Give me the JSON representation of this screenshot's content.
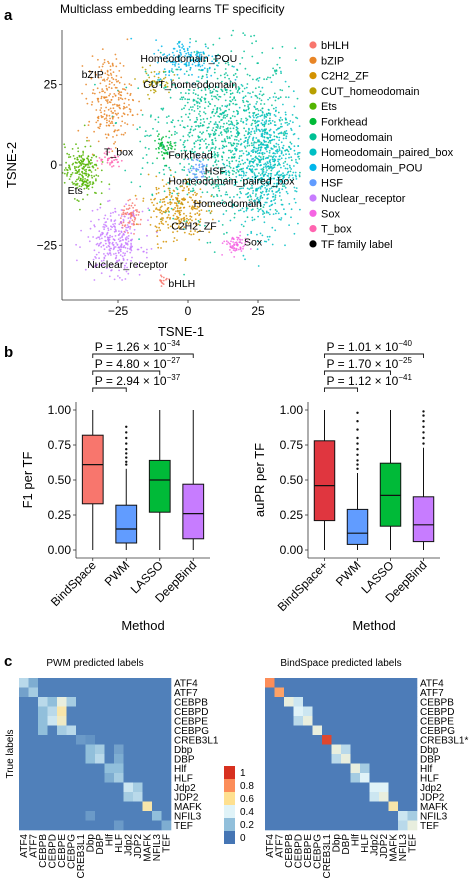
{
  "figure": {
    "title": "Multiclass embedding learns TF specificity"
  },
  "chart_data": [
    {
      "panel": "a",
      "type": "scatter",
      "xlabel": "TSNE-1",
      "ylabel": "TSNE-2",
      "xlim": [
        -45,
        40
      ],
      "ylim": [
        -42,
        42
      ],
      "xticks": [
        "−25",
        "0",
        "25"
      ],
      "yticks": [
        "25",
        "0",
        "−25"
      ],
      "xtick_values": [
        -25,
        0,
        25
      ],
      "ytick_values": [
        25,
        0,
        -25
      ],
      "legend_position": "right",
      "legend": [
        {
          "name": "bHLH",
          "color": "#f8766d"
        },
        {
          "name": "bZIP",
          "color": "#e88526"
        },
        {
          "name": "C2H2_ZF",
          "color": "#d39200"
        },
        {
          "name": "CUT_homeodomain",
          "color": "#b79f00"
        },
        {
          "name": "Ets",
          "color": "#53b400"
        },
        {
          "name": "Forkhead",
          "color": "#00ba38"
        },
        {
          "name": "Homeodomain",
          "color": "#00c094"
        },
        {
          "name": "Homeodomain_paired_box",
          "color": "#00bfc4"
        },
        {
          "name": "Homeodomain_POU",
          "color": "#00b6eb"
        },
        {
          "name": "HSF",
          "color": "#619cff"
        },
        {
          "name": "Nuclear_receptor",
          "color": "#c77cff"
        },
        {
          "name": "Sox",
          "color": "#f564e3"
        },
        {
          "name": "T_box",
          "color": "#ff64b0"
        },
        {
          "name": "TF family label",
          "color": "#000000"
        }
      ],
      "annotations": [
        {
          "text": "Homeodomain_POU",
          "x": -17,
          "y": 32
        },
        {
          "text": "bZIP",
          "x": -38,
          "y": 27
        },
        {
          "text": "CUT_homeodomain",
          "x": -16,
          "y": 24
        },
        {
          "text": "T_box",
          "x": -30,
          "y": 3
        },
        {
          "text": "Forkhead",
          "x": -7,
          "y": 2
        },
        {
          "text": "HSF",
          "x": 6,
          "y": -3
        },
        {
          "text": "Homeodomain_paired_box",
          "x": -7,
          "y": -6
        },
        {
          "text": "Ets",
          "x": -43,
          "y": -9
        },
        {
          "text": "Homeodomain",
          "x": 2,
          "y": -13
        },
        {
          "text": "C2H2_ZF",
          "x": -6,
          "y": -20
        },
        {
          "text": "Sox",
          "x": 20,
          "y": -25
        },
        {
          "text": "Nuclear_receptor",
          "x": -36,
          "y": -32
        },
        {
          "text": "bHLH",
          "x": -7,
          "y": -38
        }
      ],
      "clusters": [
        {
          "name": "Homeodomain",
          "color": "#00c094",
          "cx": 12,
          "cy": 10,
          "sx": 13,
          "sy": 13,
          "n": 1000
        },
        {
          "name": "Homeodomain_paired_box",
          "color": "#00bfc4",
          "cx": 28,
          "cy": 0,
          "sx": 6,
          "sy": 10,
          "n": 700
        },
        {
          "name": "Homeodomain_POU",
          "color": "#00b6eb",
          "cx": 0,
          "cy": 33,
          "sx": 6,
          "sy": 3,
          "n": 160
        },
        {
          "name": "CUT_homeodomain",
          "color": "#b79f00",
          "cx": -12,
          "cy": 26,
          "sx": 3,
          "sy": 2,
          "n": 50
        },
        {
          "name": "bZIP",
          "color": "#e88526",
          "cx": -28,
          "cy": 20,
          "sx": 4,
          "sy": 7,
          "n": 240
        },
        {
          "name": "Ets",
          "color": "#53b400",
          "cx": -38,
          "cy": -2,
          "sx": 3,
          "sy": 4,
          "n": 220
        },
        {
          "name": "T_box",
          "color": "#ff64b0",
          "cx": -28,
          "cy": 2,
          "sx": 2,
          "sy": 1.5,
          "n": 40
        },
        {
          "name": "Forkhead",
          "color": "#00ba38",
          "cx": -8,
          "cy": 6,
          "sx": 2,
          "sy": 2,
          "n": 60
        },
        {
          "name": "HSF",
          "color": "#619cff",
          "cx": 4,
          "cy": -1,
          "sx": 2,
          "sy": 2,
          "n": 50
        },
        {
          "name": "C2H2_ZF",
          "color": "#d39200",
          "cx": -4,
          "cy": -14,
          "sx": 5,
          "sy": 5,
          "n": 260
        },
        {
          "name": "bHLH",
          "color": "#f8766d",
          "cx": -20,
          "cy": -16,
          "sx": 2,
          "sy": 2,
          "n": 70
        },
        {
          "name": "Nuclear_receptor",
          "color": "#c77cff",
          "cx": -26,
          "cy": -24,
          "sx": 5,
          "sy": 5,
          "n": 300
        },
        {
          "name": "Sox",
          "color": "#f564e3",
          "cx": 17,
          "cy": -25,
          "sx": 2,
          "sy": 1.5,
          "n": 70
        },
        {
          "name": "bHLH",
          "color": "#f8766d",
          "cx": -9,
          "cy": -36,
          "sx": 1,
          "sy": 1,
          "n": 15
        }
      ]
    },
    {
      "panel": "b-left",
      "type": "box",
      "xlabel": "Method",
      "ylabel": "F1 per TF",
      "ylim": [
        0,
        1
      ],
      "yticks": [
        "0.00",
        "0.25",
        "0.50",
        "0.75",
        "1.00"
      ],
      "ytick_values": [
        0,
        0.25,
        0.5,
        0.75,
        1.0
      ],
      "categories": [
        "BindSpace",
        "PWM",
        "LASSO",
        "DeepBind"
      ],
      "colors": [
        "#f8766d",
        "#619cff",
        "#00ba38",
        "#c77cff"
      ],
      "boxes": [
        {
          "low": 0.0,
          "q1": 0.33,
          "median": 0.61,
          "q3": 0.82,
          "high": 1.0,
          "outliers": []
        },
        {
          "low": 0.0,
          "q1": 0.05,
          "median": 0.15,
          "q3": 0.32,
          "high": 0.58,
          "outliers": [
            0.61,
            0.63,
            0.66,
            0.69,
            0.72,
            0.76,
            0.8,
            0.84,
            0.88
          ]
        },
        {
          "low": 0.0,
          "q1": 0.27,
          "median": 0.5,
          "q3": 0.64,
          "high": 1.0,
          "outliers": []
        },
        {
          "low": 0.0,
          "q1": 0.08,
          "median": 0.26,
          "q3": 0.47,
          "high": 1.0,
          "outliers": []
        }
      ],
      "comparisons": [
        {
          "from": 0,
          "to": 1,
          "p_text": "P = 2.94 × 10",
          "exp": "−37"
        },
        {
          "from": 0,
          "to": 2,
          "p_text": "P = 4.80 × 10",
          "exp": "−27"
        },
        {
          "from": 0,
          "to": 3,
          "p_text": "P = 1.26 × 10",
          "exp": "−34"
        }
      ]
    },
    {
      "panel": "b-right",
      "type": "box",
      "xlabel": "Method",
      "ylabel": "auPR per TF",
      "ylim": [
        0,
        1
      ],
      "yticks": [
        "0.00",
        "0.25",
        "0.50",
        "0.75",
        "1.00"
      ],
      "ytick_values": [
        0,
        0.25,
        0.5,
        0.75,
        1.0
      ],
      "categories": [
        "BindSpace+",
        "PWM",
        "LASSO",
        "DeepBind"
      ],
      "colors": [
        "#e0363f",
        "#619cff",
        "#00ba38",
        "#c77cff"
      ],
      "boxes": [
        {
          "low": 0.0,
          "q1": 0.21,
          "median": 0.46,
          "q3": 0.78,
          "high": 1.0,
          "outliers": []
        },
        {
          "low": 0.0,
          "q1": 0.04,
          "median": 0.12,
          "q3": 0.29,
          "high": 0.55,
          "outliers": [
            0.58,
            0.61,
            0.64,
            0.68,
            0.72,
            0.76,
            0.8,
            0.86,
            0.92,
            0.98
          ]
        },
        {
          "low": 0.0,
          "q1": 0.17,
          "median": 0.39,
          "q3": 0.62,
          "high": 1.0,
          "outliers": []
        },
        {
          "low": 0.0,
          "q1": 0.06,
          "median": 0.18,
          "q3": 0.38,
          "high": 0.73,
          "outliers": [
            0.76,
            0.8,
            0.84,
            0.88,
            0.92,
            0.96,
            0.99
          ]
        }
      ],
      "comparisons": [
        {
          "from": 0,
          "to": 1,
          "p_text": "P = 1.12 × 10",
          "exp": "−41"
        },
        {
          "from": 0,
          "to": 2,
          "p_text": "P = 1.70 × 10",
          "exp": "−25"
        },
        {
          "from": 0,
          "to": 3,
          "p_text": "P = 1.01 × 10",
          "exp": "−40"
        }
      ]
    },
    {
      "panel": "c-left",
      "type": "heatmap",
      "title": "PWM predicted labels",
      "ylabel": "True labels",
      "labels": [
        "ATF4",
        "ATF7",
        "CEBPB",
        "CEBPD",
        "CEBPE",
        "CEBPG",
        "CREB3L1",
        "Dbp",
        "DBP",
        "Hlf",
        "HLF",
        "Jdp2",
        "JDP2",
        "MAFK",
        "NFIL3",
        "TEF"
      ],
      "row_order": "top-to-bottom",
      "strong_cells": [
        {
          "r": 0,
          "c": 0,
          "v": 0.3
        },
        {
          "r": 0,
          "c": 1,
          "v": 0.15
        },
        {
          "r": 1,
          "c": 1,
          "v": 0.25
        },
        {
          "r": 1,
          "c": 0,
          "v": 0.12
        },
        {
          "r": 2,
          "c": 2,
          "v": 0.3
        },
        {
          "r": 2,
          "c": 4,
          "v": 0.45
        },
        {
          "r": 2,
          "c": 3,
          "v": 0.2
        },
        {
          "r": 2,
          "c": 5,
          "v": 0.25
        },
        {
          "r": 3,
          "c": 3,
          "v": 0.3
        },
        {
          "r": 3,
          "c": 4,
          "v": 0.55
        },
        {
          "r": 3,
          "c": 2,
          "v": 0.2
        },
        {
          "r": 4,
          "c": 4,
          "v": 0.5
        },
        {
          "r": 4,
          "c": 3,
          "v": 0.35
        },
        {
          "r": 4,
          "c": 2,
          "v": 0.2
        },
        {
          "r": 5,
          "c": 5,
          "v": 0.3
        },
        {
          "r": 5,
          "c": 2,
          "v": 0.2
        },
        {
          "r": 5,
          "c": 4,
          "v": 0.25
        },
        {
          "r": 6,
          "c": 6,
          "v": 0.1
        },
        {
          "r": 6,
          "c": 7,
          "v": 0.08
        },
        {
          "r": 7,
          "c": 7,
          "v": 0.2
        },
        {
          "r": 7,
          "c": 8,
          "v": 0.25
        },
        {
          "r": 7,
          "c": 10,
          "v": 0.12
        },
        {
          "r": 8,
          "c": 8,
          "v": 0.3
        },
        {
          "r": 8,
          "c": 7,
          "v": 0.2
        },
        {
          "r": 8,
          "c": 10,
          "v": 0.15
        },
        {
          "r": 9,
          "c": 9,
          "v": 0.2
        },
        {
          "r": 9,
          "c": 10,
          "v": 0.2
        },
        {
          "r": 10,
          "c": 10,
          "v": 0.25
        },
        {
          "r": 10,
          "c": 9,
          "v": 0.15
        },
        {
          "r": 11,
          "c": 11,
          "v": 0.35
        },
        {
          "r": 11,
          "c": 12,
          "v": 0.25
        },
        {
          "r": 12,
          "c": 12,
          "v": 0.3
        },
        {
          "r": 12,
          "c": 11,
          "v": 0.25
        },
        {
          "r": 13,
          "c": 13,
          "v": 0.55
        },
        {
          "r": 14,
          "c": 14,
          "v": 0.2
        },
        {
          "r": 14,
          "c": 7,
          "v": 0.1
        },
        {
          "r": 15,
          "c": 15,
          "v": 0.15
        },
        {
          "r": 15,
          "c": 10,
          "v": 0.1
        }
      ],
      "baseline": 0.03
    },
    {
      "panel": "c-right",
      "type": "heatmap",
      "title": "BindSpace predicted labels",
      "labels": [
        "ATF4",
        "ATF7",
        "CEBPB",
        "CEBPD",
        "CEBPE",
        "CEBPG",
        "CREB3L1",
        "Dbp",
        "DBP",
        "Hlf",
        "HLF",
        "Jdp2",
        "JDP2",
        "MAFK",
        "NFIL3",
        "TEF"
      ],
      "row_labels": [
        "ATF4",
        "ATF7",
        "CEBPB",
        "CEBPD",
        "CEBPE",
        "CEBPG",
        "CREB3L1*",
        "Dbp",
        "DBP",
        "Hlf",
        "HLF",
        "Jdp2",
        "JDP2",
        "MAFK",
        "NFIL3",
        "TEF"
      ],
      "strong_cells": [
        {
          "r": 0,
          "c": 0,
          "v": 0.8
        },
        {
          "r": 1,
          "c": 1,
          "v": 0.75
        },
        {
          "r": 2,
          "c": 2,
          "v": 0.45
        },
        {
          "r": 2,
          "c": 3,
          "v": 0.35
        },
        {
          "r": 3,
          "c": 3,
          "v": 0.4
        },
        {
          "r": 3,
          "c": 4,
          "v": 0.35
        },
        {
          "r": 4,
          "c": 4,
          "v": 0.45
        },
        {
          "r": 4,
          "c": 3,
          "v": 0.3
        },
        {
          "r": 5,
          "c": 5,
          "v": 0.45
        },
        {
          "r": 6,
          "c": 6,
          "v": 0.95
        },
        {
          "r": 7,
          "c": 7,
          "v": 0.45
        },
        {
          "r": 7,
          "c": 8,
          "v": 0.3
        },
        {
          "r": 8,
          "c": 8,
          "v": 0.45
        },
        {
          "r": 8,
          "c": 7,
          "v": 0.3
        },
        {
          "r": 9,
          "c": 9,
          "v": 0.45
        },
        {
          "r": 9,
          "c": 10,
          "v": 0.25
        },
        {
          "r": 10,
          "c": 10,
          "v": 0.4
        },
        {
          "r": 10,
          "c": 9,
          "v": 0.25
        },
        {
          "r": 11,
          "c": 11,
          "v": 0.4
        },
        {
          "r": 11,
          "c": 12,
          "v": 0.4
        },
        {
          "r": 12,
          "c": 12,
          "v": 0.45
        },
        {
          "r": 12,
          "c": 11,
          "v": 0.35
        },
        {
          "r": 13,
          "c": 13,
          "v": 0.55
        },
        {
          "r": 14,
          "c": 14,
          "v": 0.35
        },
        {
          "r": 14,
          "c": 15,
          "v": 0.25
        },
        {
          "r": 15,
          "c": 15,
          "v": 0.45
        },
        {
          "r": 15,
          "c": 14,
          "v": 0.3
        }
      ],
      "baseline": 0.02
    }
  ],
  "colorbar": {
    "ticks": [
      "1",
      "0.8",
      "0.6",
      "0.4",
      "0.2",
      "0"
    ],
    "tick_values": [
      1,
      0.8,
      0.6,
      0.4,
      0.2,
      0
    ],
    "colors": [
      "#d7301f",
      "#fc8d59",
      "#fee090",
      "#e0f3f8",
      "#91bfdb",
      "#4575b4"
    ]
  },
  "panel_letters": {
    "a": "a",
    "b": "b",
    "c": "c"
  }
}
